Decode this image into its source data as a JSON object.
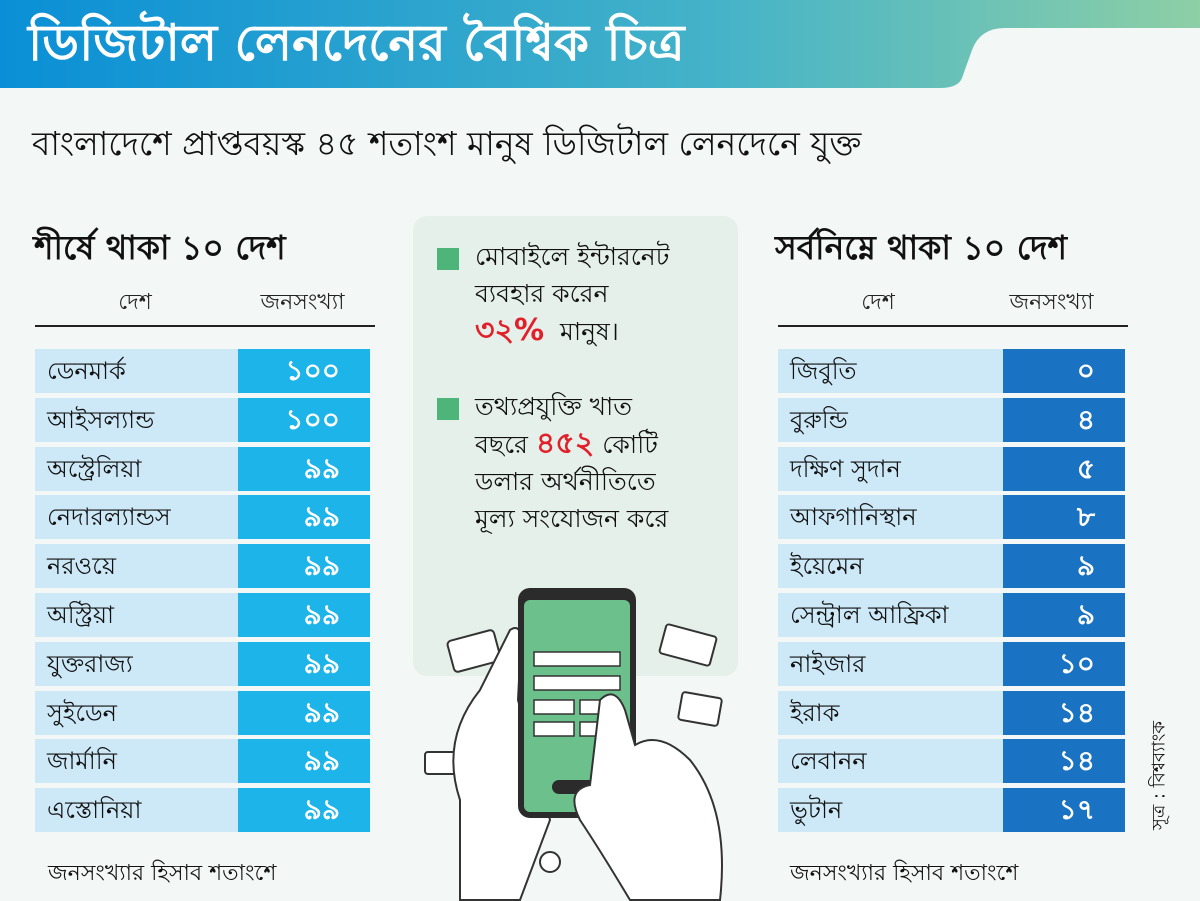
{
  "header": {
    "title": "ডিজিটাল লেনদেনের বৈশ্বিক চিত্র",
    "subtitle": "বাংলাদেশে প্রাপ্তবয়স্ক ৪৫ শতাংশ মানুষ ডিজিটাল লেনদেনে যুক্ত",
    "gradient_start": "#0a8fd6",
    "gradient_end": "#8dcfa6"
  },
  "info_box": {
    "point1_line1": "মোবাইলে ইন্টারনেট",
    "point1_line2": "ব্যবহার করেন",
    "point1_highlight": "৩২%",
    "point1_tail": "মানুষ।",
    "point2_line1": "তথ্যপ্রযুক্তি খাত",
    "point2_pre": "বছরে",
    "point2_highlight": "৪৫২",
    "point2_post": "কোটি",
    "point2_line3": "ডলার অর্থনীতিতে",
    "point2_line4": "মূল্য সংযোজন করে",
    "highlight_color": "#e2202a",
    "bullet_color": "#4db47a"
  },
  "source": "সূত্র : বিশ্বব্যাংক",
  "chart_data": [
    {
      "type": "table",
      "title": "শীর্ষে থাকা ১০ দেশ",
      "columns": [
        "দেশ",
        "জনসংখ্যা"
      ],
      "rows": [
        [
          "ডেনমার্ক",
          "১০০"
        ],
        [
          "আইসল্যান্ড",
          "১০০"
        ],
        [
          "অস্ট্রেলিয়া",
          "৯৯"
        ],
        [
          "নেদারল্যান্ডস",
          "৯৯"
        ],
        [
          "নরওয়ে",
          "৯৯"
        ],
        [
          "অস্ট্রিয়া",
          "৯৯"
        ],
        [
          "যুক্তরাজ্য",
          "৯৯"
        ],
        [
          "সুইডেন",
          "৯৯"
        ],
        [
          "জার্মানি",
          "৯৯"
        ],
        [
          "এস্তোনিয়া",
          "৯৯"
        ]
      ],
      "footnote": "জনসংখ্যার হিসাব শতাংশে",
      "value_color": "#1db4ea"
    },
    {
      "type": "table",
      "title": "সর্বনিম্নে থাকা ১০ দেশ",
      "columns": [
        "দেশ",
        "জনসংখ্যা"
      ],
      "rows": [
        [
          "জিবুতি",
          "০"
        ],
        [
          "বুরুন্ডি",
          "৪"
        ],
        [
          "দক্ষিণ সুদান",
          "৫"
        ],
        [
          "আফগানিস্থান",
          "৮"
        ],
        [
          "ইয়েমেন",
          "৯"
        ],
        [
          "সেন্ট্রাল আফ্রিকা",
          "৯"
        ],
        [
          "নাইজার",
          "১০"
        ],
        [
          "ইরাক",
          "১৪"
        ],
        [
          "লেবানন",
          "১৪"
        ],
        [
          "ভুটান",
          "১৭"
        ]
      ],
      "footnote": "জনসংখ্যার হিসাব শতাংশে",
      "value_color": "#1a73c2"
    }
  ]
}
